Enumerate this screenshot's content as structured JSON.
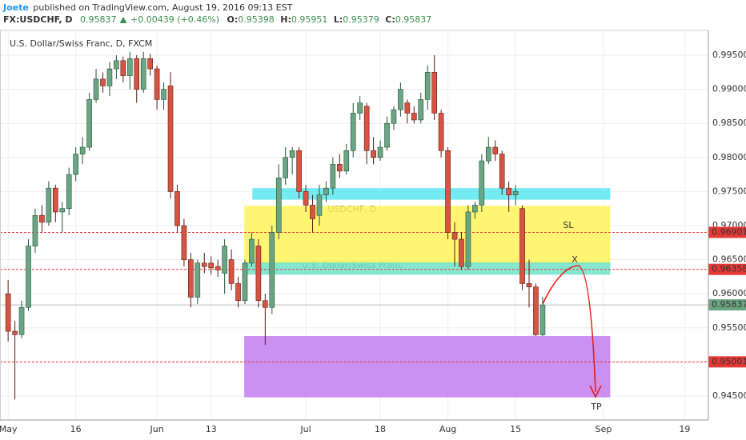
{
  "header": {
    "author": "Joete",
    "published": "published on TradingView.com, August 19, 2016 09:13 EST",
    "symbol": "FX:USDCHF, D",
    "last": "0.95837",
    "change": "+0.00439 (+0.46%)",
    "open_label": "O:",
    "open": "0.95398",
    "high_label": "H:",
    "high": "0.95951",
    "low_label": "L:",
    "low": "0.95379",
    "close_label": "C:",
    "close": "0.95837"
  },
  "chart_data": {
    "type": "candlestick",
    "title": "U.S. Dollar/Swiss Franc, D, FXCM",
    "watermark": {
      "symbol": "USDCHF, D",
      "name": "U.S. Dollar/Swiss Franc"
    },
    "up_color": "#6ba583",
    "down_color": "#d75442",
    "grid": true,
    "open": [
      0.96,
      0.9545,
      0.954,
      0.958,
      0.967,
      0.9715,
      0.9705,
      0.9755,
      0.972,
      0.9725,
      0.9775,
      0.9805,
      0.9815,
      0.9885,
      0.9915,
      0.9905,
      0.993,
      0.9942,
      0.992,
      0.9945,
      0.99,
      0.9945,
      0.993,
      0.9885,
      0.9905,
      0.975,
      0.97,
      0.965,
      0.9595,
      0.9645,
      0.9645,
      0.964,
      0.963,
      0.965,
      0.9615,
      0.959,
      0.9645,
      0.967,
      0.959,
      0.958,
      0.969,
      0.977,
      0.98,
      0.981,
      0.975,
      0.973,
      0.9715,
      0.9745,
      0.9755,
      0.979,
      0.978,
      0.981,
      0.9865,
      0.9875,
      0.981,
      0.98,
      0.9815,
      0.985,
      0.987,
      0.988,
      0.9865,
      0.9855,
      0.9885,
      0.9925,
      0.9865,
      0.981,
      0.969,
      0.968,
      0.964,
      0.972,
      0.973,
      0.9795,
      0.9815,
      0.9805,
      0.9755,
      0.9745,
      0.9725,
      0.9615,
      0.961,
      0.95398
    ],
    "high": [
      0.962,
      0.956,
      0.959,
      0.968,
      0.9725,
      0.973,
      0.9765,
      0.976,
      0.9735,
      0.9785,
      0.9815,
      0.983,
      0.9895,
      0.993,
      0.9925,
      0.994,
      0.995,
      0.9948,
      0.9955,
      0.995,
      0.9955,
      0.9952,
      0.9935,
      0.991,
      0.9925,
      0.976,
      0.971,
      0.966,
      0.965,
      0.966,
      0.9655,
      0.965,
      0.968,
      0.9665,
      0.9625,
      0.965,
      0.969,
      0.968,
      0.96,
      0.97,
      0.979,
      0.9815,
      0.9815,
      0.9815,
      0.976,
      0.9745,
      0.976,
      0.9765,
      0.98,
      0.9805,
      0.982,
      0.988,
      0.989,
      0.988,
      0.983,
      0.9825,
      0.986,
      0.9875,
      0.991,
      0.9885,
      0.9875,
      0.9895,
      0.9935,
      0.995,
      0.987,
      0.9815,
      0.9705,
      0.969,
      0.973,
      0.9735,
      0.9805,
      0.983,
      0.9825,
      0.981,
      0.9765,
      0.976,
      0.973,
      0.965,
      0.9615,
      0.95951
    ],
    "low": [
      0.953,
      0.9445,
      0.9535,
      0.9575,
      0.966,
      0.969,
      0.97,
      0.9705,
      0.969,
      0.9715,
      0.9765,
      0.979,
      0.981,
      0.988,
      0.9895,
      0.989,
      0.9915,
      0.991,
      0.99,
      0.988,
      0.9895,
      0.992,
      0.987,
      0.987,
      0.974,
      0.969,
      0.964,
      0.958,
      0.9585,
      0.963,
      0.9628,
      0.9625,
      0.96,
      0.9605,
      0.958,
      0.9585,
      0.964,
      0.958,
      0.9525,
      0.957,
      0.968,
      0.976,
      0.9775,
      0.974,
      0.972,
      0.969,
      0.97,
      0.9735,
      0.9745,
      0.977,
      0.9775,
      0.98,
      0.9855,
      0.979,
      0.979,
      0.9795,
      0.981,
      0.984,
      0.986,
      0.985,
      0.985,
      0.985,
      0.987,
      0.9855,
      0.98,
      0.968,
      0.964,
      0.9635,
      0.9635,
      0.971,
      0.972,
      0.979,
      0.9795,
      0.9745,
      0.972,
      0.973,
      0.9605,
      0.958,
      0.9538,
      0.95379
    ],
    "close": [
      0.9545,
      0.954,
      0.958,
      0.967,
      0.9715,
      0.9705,
      0.9755,
      0.972,
      0.9725,
      0.9775,
      0.9805,
      0.9815,
      0.9885,
      0.9915,
      0.9905,
      0.993,
      0.9942,
      0.992,
      0.9945,
      0.99,
      0.9945,
      0.993,
      0.9885,
      0.99,
      0.975,
      0.97,
      0.965,
      0.9595,
      0.9645,
      0.964,
      0.9638,
      0.9635,
      0.967,
      0.9615,
      0.959,
      0.9645,
      0.968,
      0.959,
      0.958,
      0.969,
      0.977,
      0.98,
      0.981,
      0.975,
      0.973,
      0.971,
      0.9745,
      0.9755,
      0.979,
      0.978,
      0.981,
      0.9865,
      0.988,
      0.981,
      0.98,
      0.9815,
      0.985,
      0.987,
      0.99,
      0.9865,
      0.9855,
      0.9885,
      0.9925,
      0.9865,
      0.981,
      0.969,
      0.968,
      0.964,
      0.972,
      0.973,
      0.9795,
      0.9815,
      0.9805,
      0.9755,
      0.9745,
      0.975,
      0.9615,
      0.961,
      0.954,
      0.95837
    ],
    "xlim": [
      -1.2,
      103.5
    ],
    "xticks": [
      {
        "value": 0,
        "label": "May"
      },
      {
        "value": 10,
        "label": "16"
      },
      {
        "value": 22,
        "label": "Jun"
      },
      {
        "value": 30,
        "label": "13"
      },
      {
        "value": 44,
        "label": "Jul"
      },
      {
        "value": 55,
        "label": "18"
      },
      {
        "value": 65,
        "label": "Aug"
      },
      {
        "value": 75,
        "label": "15"
      },
      {
        "value": 88,
        "label": "Sep"
      },
      {
        "value": 100,
        "label": "19"
      }
    ],
    "ylim": [
      0.94148,
      0.99864
    ],
    "yticks": [
      {
        "value": 0.995,
        "label": "0.99500"
      },
      {
        "value": 0.99,
        "label": "0.99000"
      },
      {
        "value": 0.985,
        "label": "0.98500"
      },
      {
        "value": 0.98,
        "label": "0.98000"
      },
      {
        "value": 0.975,
        "label": "0.97500"
      },
      {
        "value": 0.97,
        "label": "0.97000"
      },
      {
        "value": 0.965,
        "label": "0.96500"
      },
      {
        "value": 0.96,
        "label": "0.96000"
      },
      {
        "value": 0.955,
        "label": "0.95500"
      },
      {
        "value": 0.95,
        "label": "0.95000"
      },
      {
        "value": 0.945,
        "label": "0.94500"
      }
    ],
    "zones": [
      {
        "x": [
          34.9,
          89
        ],
        "y": [
          0.9644,
          0.9729
        ],
        "color": "#fff35a"
      },
      {
        "x": [
          36.1,
          89
        ],
        "y": [
          0.9738,
          0.9755
        ],
        "color": "#5ce8f0"
      },
      {
        "x": [
          34.9,
          89
        ],
        "y": [
          0.9628,
          0.9646
        ],
        "color": "#6fe3c8"
      },
      {
        "x": [
          34.9,
          89
        ],
        "y": [
          0.9448,
          0.9538
        ],
        "color": "#c27cf2"
      }
    ],
    "price_lines": [
      {
        "value": 0.96901,
        "color": "#e53935"
      },
      {
        "value": 0.96358,
        "color": "#e53935"
      },
      {
        "value": 0.95837,
        "color": "#6ba583"
      },
      {
        "value": 0.95001,
        "color": "#e53935"
      }
    ],
    "annotations": [
      "SL",
      "X",
      "TP"
    ]
  }
}
